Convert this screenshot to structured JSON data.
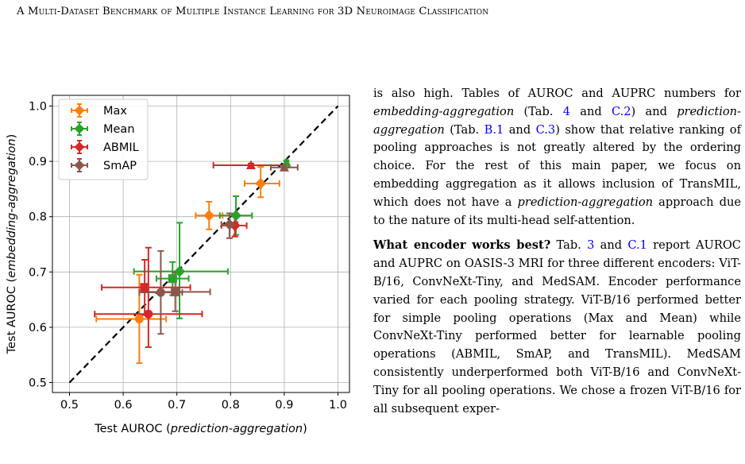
{
  "header": {
    "running_title": "A Multi-Dataset Benchmark of Multiple Instance Learning for 3D Neuroimage Classification"
  },
  "colors": {
    "Max": "#ff7f0e",
    "Mean": "#2ca02c",
    "ABMIL": "#d62728",
    "SmAP": "#8c564b",
    "identity_line": "#000000",
    "grid": "#b0b0b0",
    "link": "#0000ee"
  },
  "chart_data": {
    "type": "scatter",
    "xlabel_prefix": "Test AUROC (",
    "xlabel_italic": "prediction-aggregation",
    "xlabel_suffix": ")",
    "ylabel_prefix": "Test AUROC (",
    "ylabel_italic": "embedding-aggregation",
    "ylabel_suffix": ")",
    "xlim": [
      0.5,
      1.0
    ],
    "ylim": [
      0.5,
      1.0
    ],
    "x_ticks": [
      "0.5",
      "0.6",
      "0.7",
      "0.8",
      "0.9",
      "1.0"
    ],
    "y_ticks": [
      "0.5",
      "0.6",
      "0.7",
      "0.8",
      "0.9",
      "1.0"
    ],
    "grid": true,
    "legend_position": "top-left",
    "identity_line": true,
    "series": [
      {
        "name": "Max",
        "points": [
          {
            "x": 0.63,
            "y": 0.615,
            "xerr": [
              0.08,
              0.05
            ],
            "yerr": [
              0.08,
              0.08
            ],
            "marker": "circle"
          },
          {
            "x": 0.76,
            "y": 0.802,
            "xerr": [
              0.025,
              0.025
            ],
            "yerr": [
              0.025,
              0.025
            ],
            "marker": "diamond"
          },
          {
            "x": 0.856,
            "y": 0.86,
            "xerr": [
              0.03,
              0.035
            ],
            "yerr": [
              0.025,
              0.03
            ],
            "marker": "diamond"
          }
        ]
      },
      {
        "name": "Mean",
        "points": [
          {
            "x": 0.692,
            "y": 0.688,
            "xerr": [
              0.03,
              0.03
            ],
            "yerr": [
              0.03,
              0.03
            ],
            "marker": "square"
          },
          {
            "x": 0.705,
            "y": 0.701,
            "xerr": [
              0.085,
              0.09
            ],
            "yerr": [
              0.085,
              0.088
            ],
            "marker": "diamond"
          },
          {
            "x": 0.81,
            "y": 0.802,
            "xerr": [
              0.03,
              0.03
            ],
            "yerr": [
              0.035,
              0.035
            ],
            "marker": "diamond"
          },
          {
            "x": 0.904,
            "y": 0.898,
            "xerr": [
              0.003,
              0.003
            ],
            "yerr": [
              0.003,
              0.003
            ],
            "marker": "triangle"
          }
        ]
      },
      {
        "name": "ABMIL",
        "points": [
          {
            "x": 0.64,
            "y": 0.672,
            "xerr": [
              0.08,
              0.085
            ],
            "yerr": [
              0.05,
              0.05
            ],
            "marker": "square"
          },
          {
            "x": 0.647,
            "y": 0.624,
            "xerr": [
              0.1,
              0.1
            ],
            "yerr": [
              0.06,
              0.12
            ],
            "marker": "circle"
          },
          {
            "x": 0.808,
            "y": 0.784,
            "xerr": [
              0.025,
              0.022
            ],
            "yerr": [
              0.02,
              0.02
            ],
            "marker": "diamond"
          },
          {
            "x": 0.838,
            "y": 0.893,
            "xerr": [
              0.07,
              0.07
            ],
            "yerr": [
              0.003,
              0.003
            ],
            "marker": "triangle"
          }
        ]
      },
      {
        "name": "SmAP",
        "points": [
          {
            "x": 0.67,
            "y": 0.663,
            "xerr": [
              0.04,
              0.04
            ],
            "yerr": [
              0.075,
              0.075
            ],
            "marker": "circle"
          },
          {
            "x": 0.697,
            "y": 0.664,
            "xerr": [
              0.05,
              0.065
            ],
            "yerr": [
              0.035,
              0.035
            ],
            "marker": "square"
          },
          {
            "x": 0.798,
            "y": 0.786,
            "xerr": [
              0.015,
              0.015
            ],
            "yerr": [
              0.025,
              0.02
            ],
            "marker": "diamond"
          },
          {
            "x": 0.9,
            "y": 0.889,
            "xerr": [
              0.025,
              0.025
            ],
            "yerr": [
              0.003,
              0.003
            ],
            "marker": "triangle"
          }
        ]
      }
    ]
  },
  "body": {
    "p1_a": "is also high. Tables of AUROC and AUPRC numbers for ",
    "p1_em1": "embedding-aggregation",
    "p1_b": " (Tab. ",
    "p1_ref1": "4",
    "p1_c": " and ",
    "p1_ref2": "C.2",
    "p1_d": ") and ",
    "p1_em2": "prediction-aggregation",
    "p1_e": " (Tab. ",
    "p1_ref3": "B.1",
    "p1_f": " and ",
    "p1_ref4": "C.3",
    "p1_g": ") show that relative ranking of pooling approaches is not greatly altered by the ordering choice. For the rest of this main paper, we focus on embedding aggregation as it allows inclusion of TransMIL, which does not have a ",
    "p1_em3": "prediction-aggregation",
    "p1_h": " approach due to the nature of its multi-head self-attention.",
    "p2_heading": "What encoder works best?",
    "p2_a": " Tab. ",
    "p2_ref1": "3",
    "p2_b": " and ",
    "p2_ref2": "C.1",
    "p2_c": " report AUROC and AUPRC on OASIS-3 MRI for three different encoders: ViT-B/16, ConvNeXt-Tiny, and MedSAM. Encoder performance varied for each pooling strategy. ViT-B/16 performed better for simple pooling operations (Max and Mean) while ConvNeXt-Tiny performed better for learnable pooling operations (ABMIL, SmAP, and TransMIL). MedSAM consistently underperformed both ViT-B/16 and ConvNeXt-Tiny for all pooling operations. We chose a frozen ViT-B/16 for all subsequent exper-"
  }
}
